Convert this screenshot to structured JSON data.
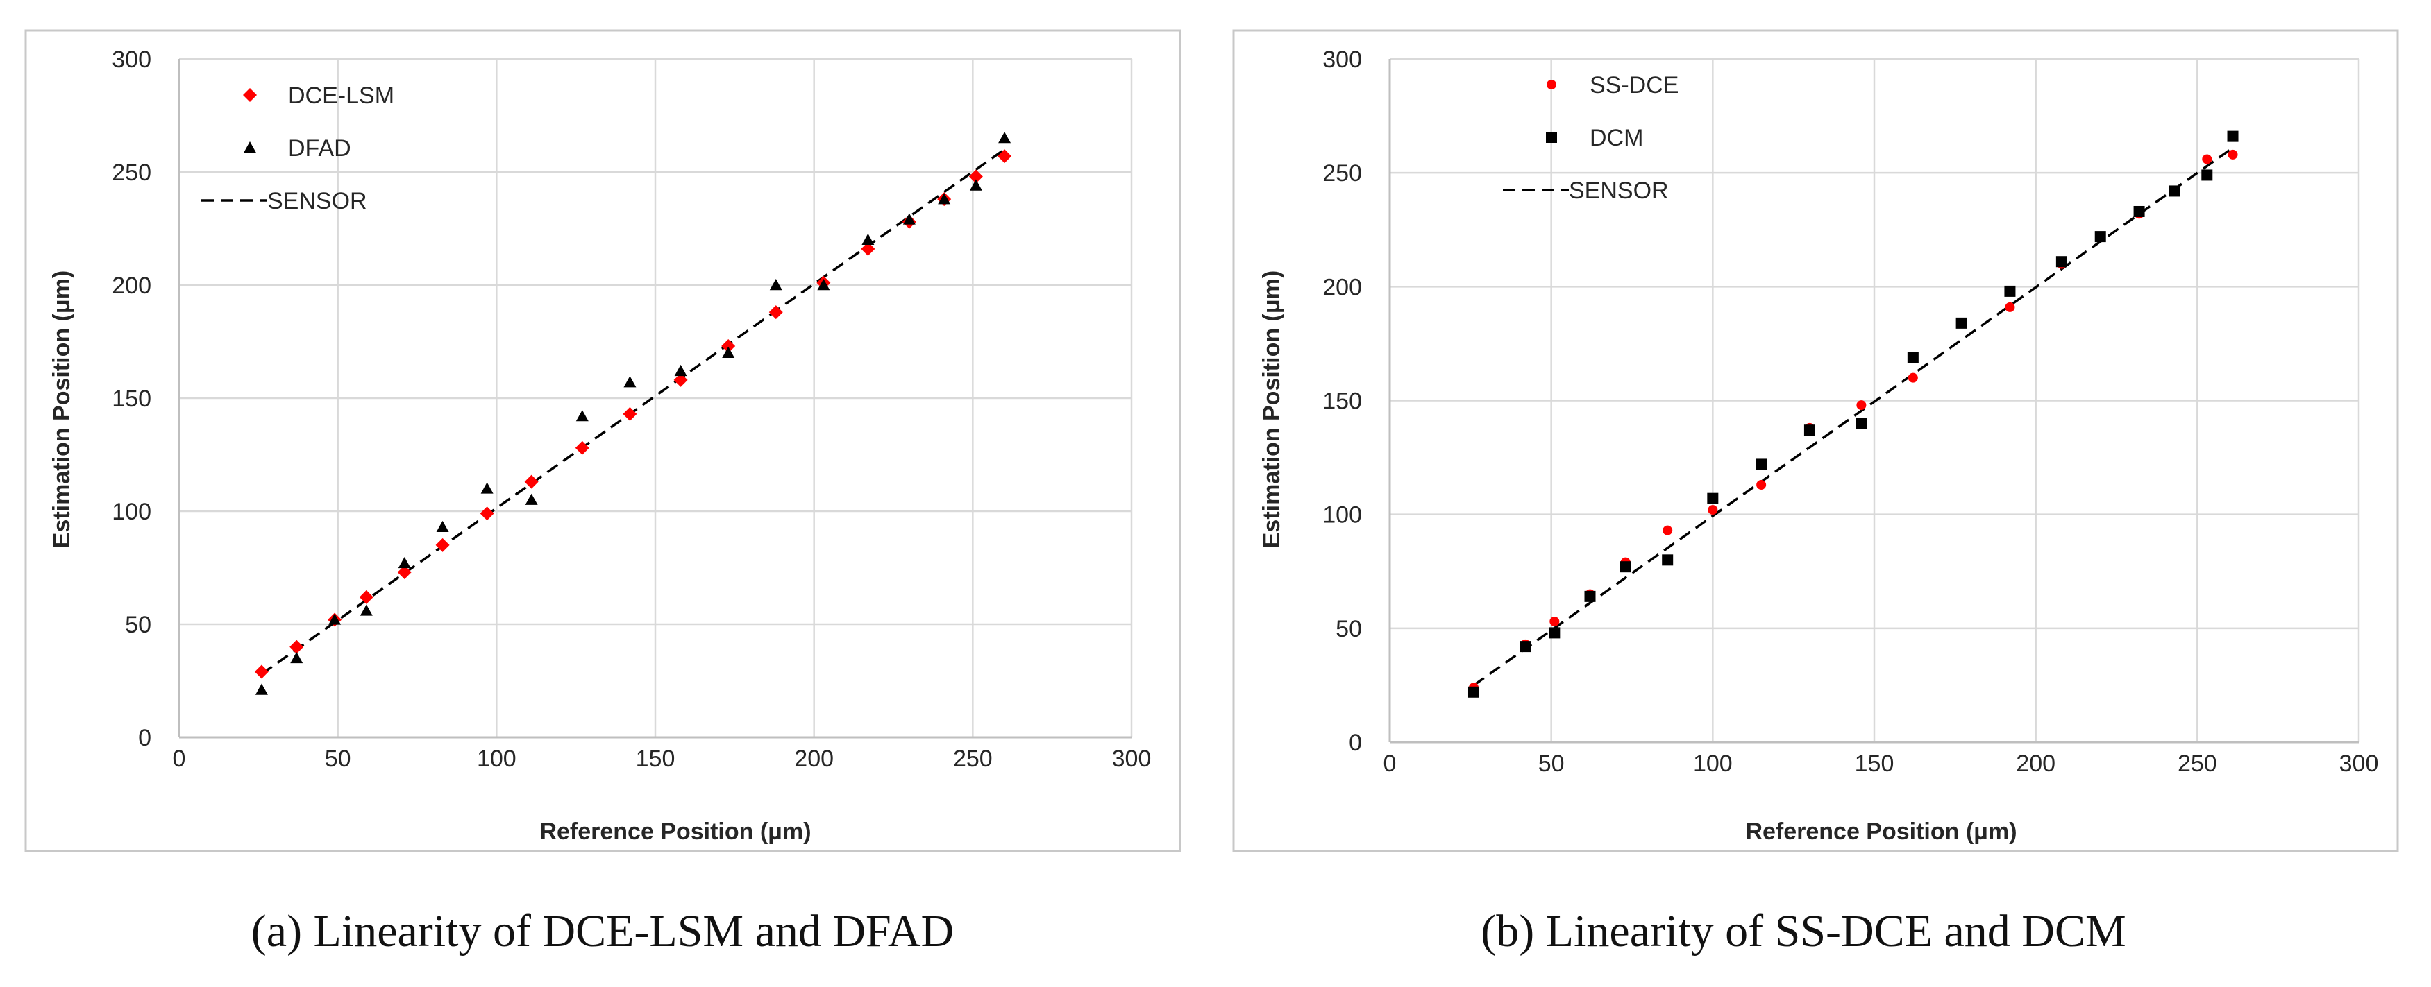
{
  "chart_data": [
    {
      "type": "scatter",
      "caption": "(a) Linearity of DCE-LSM and DFAD",
      "xlabel": "Reference Position  (μm)",
      "ylabel": "Estimation Position  (μm)",
      "xlim": [
        0,
        300
      ],
      "ylim": [
        0,
        300
      ],
      "xticks": [
        0,
        50,
        100,
        150,
        200,
        250,
        300
      ],
      "yticks": [
        0,
        50,
        100,
        150,
        200,
        250,
        300
      ],
      "legend_position": "top-left",
      "series": [
        {
          "name": "DCE-LSM",
          "marker": "diamond",
          "color": "#ff0000",
          "points": [
            [
              26,
              29
            ],
            [
              37,
              40
            ],
            [
              49,
              52
            ],
            [
              59,
              62
            ],
            [
              71,
              73
            ],
            [
              83,
              85
            ],
            [
              97,
              99
            ],
            [
              111,
              113
            ],
            [
              127,
              128
            ],
            [
              142,
              143
            ],
            [
              158,
              158
            ],
            [
              173,
              173
            ],
            [
              188,
              188
            ],
            [
              203,
              201
            ],
            [
              217,
              216
            ],
            [
              230,
              228
            ],
            [
              241,
              238
            ],
            [
              251,
              248
            ],
            [
              260,
              257
            ]
          ]
        },
        {
          "name": "DFAD",
          "marker": "triangle",
          "color": "#000000",
          "points": [
            [
              26,
              21
            ],
            [
              37,
              35
            ],
            [
              49,
              52
            ],
            [
              59,
              56
            ],
            [
              71,
              77
            ],
            [
              83,
              93
            ],
            [
              97,
              110
            ],
            [
              111,
              105
            ],
            [
              127,
              142
            ],
            [
              142,
              157
            ],
            [
              158,
              162
            ],
            [
              173,
              170
            ],
            [
              188,
              200
            ],
            [
              203,
              200
            ],
            [
              217,
              220
            ],
            [
              230,
              229
            ],
            [
              241,
              238
            ],
            [
              251,
              244
            ],
            [
              260,
              265
            ]
          ]
        },
        {
          "name": "SENSOR",
          "line_style": "dashed",
          "color": "#000000",
          "points": [
            [
              26,
              28
            ],
            [
              260,
              260
            ]
          ]
        }
      ]
    },
    {
      "type": "scatter",
      "caption": "(b) Linearity of SS-DCE and DCM",
      "xlabel": "Reference Position  (μm)",
      "ylabel": "Estimation Position  (μm)",
      "xlim": [
        0,
        300
      ],
      "ylim": [
        0,
        300
      ],
      "xticks": [
        0,
        50,
        100,
        150,
        200,
        250,
        300
      ],
      "yticks": [
        0,
        50,
        100,
        150,
        200,
        250,
        300
      ],
      "legend_position": "top-left",
      "series": [
        {
          "name": "SS-DCE",
          "marker": "circle",
          "color": "#ff0000",
          "points": [
            [
              26,
              24
            ],
            [
              42,
              43
            ],
            [
              51,
              53
            ],
            [
              62,
              65
            ],
            [
              73,
              79
            ],
            [
              86,
              93
            ],
            [
              100,
              102
            ],
            [
              115,
              113
            ],
            [
              130,
              138
            ],
            [
              146,
              148
            ],
            [
              162,
              160
            ],
            [
              192,
              191
            ],
            [
              208,
              210
            ],
            [
              220,
              222
            ],
            [
              232,
              232
            ],
            [
              243,
              242
            ],
            [
              253,
              256
            ],
            [
              261,
              258
            ]
          ]
        },
        {
          "name": "DCM",
          "marker": "square",
          "color": "#000000",
          "points": [
            [
              26,
              22
            ],
            [
              42,
              42
            ],
            [
              51,
              48
            ],
            [
              62,
              64
            ],
            [
              73,
              77
            ],
            [
              86,
              80
            ],
            [
              100,
              107
            ],
            [
              115,
              122
            ],
            [
              130,
              137
            ],
            [
              146,
              140
            ],
            [
              162,
              169
            ],
            [
              177,
              184
            ],
            [
              192,
              198
            ],
            [
              208,
              211
            ],
            [
              220,
              222
            ],
            [
              232,
              233
            ],
            [
              243,
              242
            ],
            [
              253,
              249
            ],
            [
              261,
              266
            ]
          ]
        },
        {
          "name": "SENSOR",
          "line_style": "dashed",
          "color": "#000000",
          "points": [
            [
              26,
              25
            ],
            [
              260,
              260
            ]
          ]
        }
      ]
    }
  ]
}
